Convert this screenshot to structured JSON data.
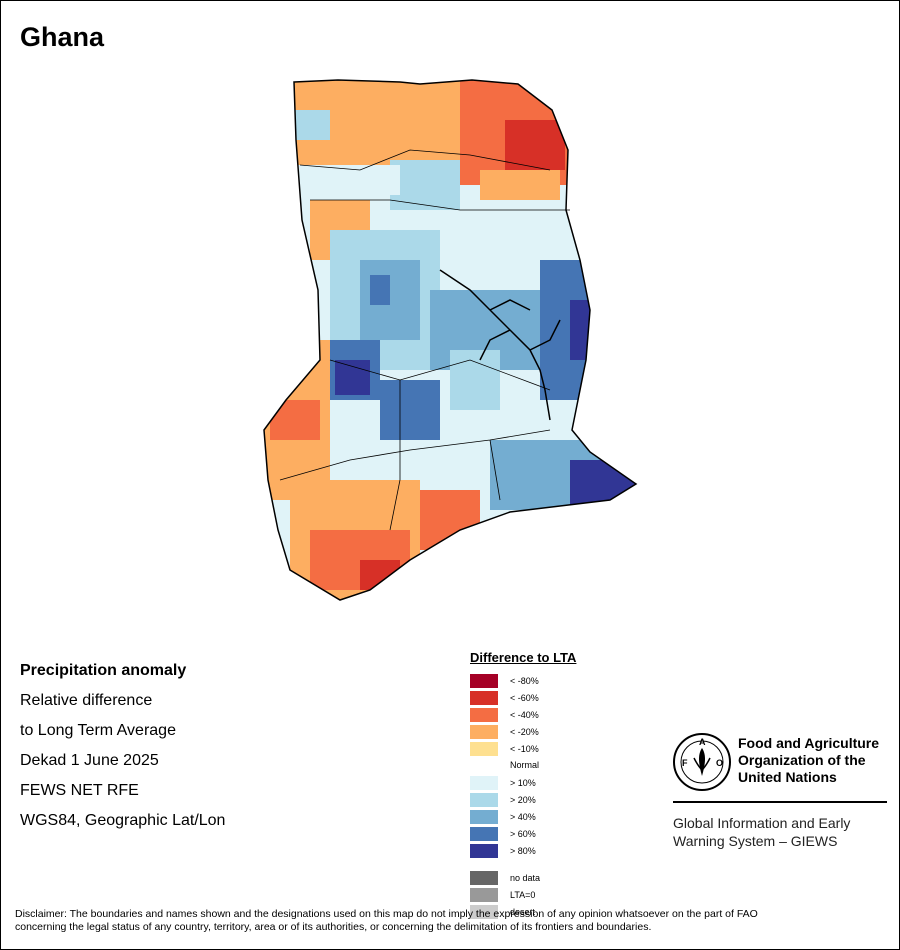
{
  "map": {
    "title": "Ghana",
    "info": {
      "line1": "Precipitation anomaly",
      "line2": "Relative difference",
      "line3": "to Long Term Average",
      "line4": "Dekad 1 June 2025",
      "line5": "FEWS NET RFE",
      "line6": "WGS84, Geographic Lat/Lon"
    },
    "legend": {
      "title": "Difference to LTA",
      "dry": [
        {
          "label": "< -80%",
          "color": "#a50026"
        },
        {
          "label": "< -60%",
          "color": "#d73027"
        },
        {
          "label": "< -40%",
          "color": "#f46d43"
        },
        {
          "label": "< -20%",
          "color": "#fdae61"
        },
        {
          "label": "< -10%",
          "color": "#fee090"
        }
      ],
      "normal": "Normal",
      "wet": [
        {
          "label": "> 10%",
          "color": "#e0f3f8"
        },
        {
          "label": "> 20%",
          "color": "#abd9e9"
        },
        {
          "label": "> 40%",
          "color": "#74add1"
        },
        {
          "label": "> 60%",
          "color": "#4575b4"
        },
        {
          "label": "> 80%",
          "color": "#313695"
        }
      ],
      "other": [
        {
          "label": "no data",
          "color": "#666666"
        },
        {
          "label": "LTA=0",
          "color": "#999999"
        },
        {
          "label": "desert",
          "color": "#cccccc"
        }
      ]
    },
    "org": {
      "logo_text": "FAO",
      "logo_motto": "FIAT PANIS",
      "name_line1": "Food and Agriculture",
      "name_line2": "Organization of the",
      "name_line3": "United Nations",
      "system_line1": "Global Information and Early",
      "system_line2": "Warning System – GIEWS"
    },
    "disclaimer_line1": "Disclaimer: The boundaries and names shown and the designations used on this map do not imply the expression of any opinion whatsoever on the part of FAO",
    "disclaimer_line2": "concerning the legal status of any country, territory, area or of its authorities, or concerning the delimitation of its frontiers and boundaries."
  }
}
